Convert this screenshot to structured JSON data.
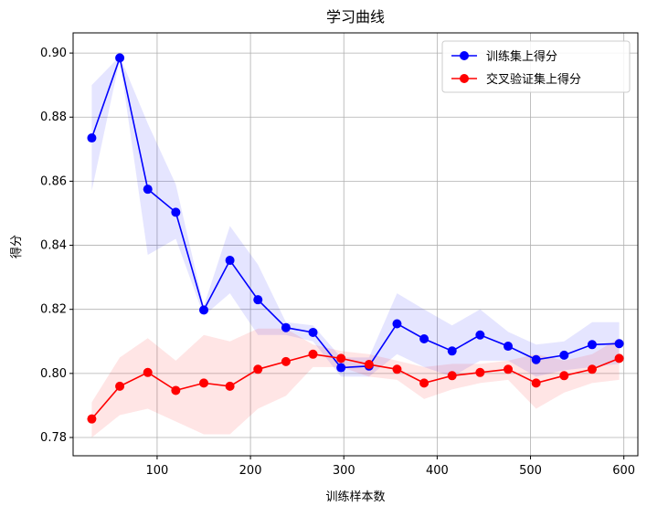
{
  "chart_data": {
    "type": "line",
    "title": "学习曲线",
    "xlabel": "训练样本数",
    "ylabel": "得分",
    "xlim": [
      10,
      615
    ],
    "ylim": [
      0.7743,
      0.9063
    ],
    "xticks": [
      100,
      200,
      300,
      400,
      500,
      600
    ],
    "yticks": [
      0.78,
      0.8,
      0.82,
      0.84,
      0.86,
      0.88,
      0.9
    ],
    "grid": true,
    "legend_position": "top-right",
    "x": [
      30,
      60,
      90,
      120,
      150,
      178,
      208,
      238,
      267,
      297,
      327,
      357,
      386,
      416,
      446,
      476,
      506,
      536,
      566,
      595
    ],
    "series": [
      {
        "name": "训练集上得分",
        "color": "#0000ff",
        "band_color": "#0000ff",
        "values": [
          0.8735,
          0.8985,
          0.8575,
          0.8503,
          0.8198,
          0.8353,
          0.823,
          0.8143,
          0.8128,
          0.8018,
          0.8023,
          0.8155,
          0.8108,
          0.807,
          0.812,
          0.8085,
          0.8043,
          0.8057,
          0.809,
          0.8093
        ],
        "upper": [
          0.89,
          0.899,
          0.878,
          0.859,
          0.821,
          0.846,
          0.834,
          0.816,
          0.815,
          0.805,
          0.805,
          0.825,
          0.82,
          0.815,
          0.82,
          0.813,
          0.809,
          0.81,
          0.816,
          0.816
        ],
        "lower": [
          0.857,
          0.898,
          0.837,
          0.842,
          0.818,
          0.825,
          0.812,
          0.812,
          0.81,
          0.799,
          0.799,
          0.806,
          0.802,
          0.799,
          0.804,
          0.804,
          0.799,
          0.801,
          0.802,
          0.803
        ]
      },
      {
        "name": "交叉验证集上得分",
        "color": "#ff0000",
        "band_color": "#ff0000",
        "values": [
          0.7858,
          0.796,
          0.8003,
          0.7947,
          0.797,
          0.796,
          0.8013,
          0.8037,
          0.806,
          0.8047,
          0.8028,
          0.8013,
          0.797,
          0.7993,
          0.8003,
          0.8013,
          0.797,
          0.7993,
          0.8013,
          0.8047
        ],
        "upper": [
          0.791,
          0.805,
          0.811,
          0.804,
          0.812,
          0.81,
          0.814,
          0.814,
          0.809,
          0.807,
          0.806,
          0.804,
          0.802,
          0.803,
          0.803,
          0.804,
          0.806,
          0.804,
          0.806,
          0.811
        ],
        "lower": [
          0.78,
          0.787,
          0.789,
          0.785,
          0.781,
          0.781,
          0.789,
          0.793,
          0.802,
          0.802,
          0.799,
          0.798,
          0.792,
          0.795,
          0.797,
          0.798,
          0.789,
          0.794,
          0.797,
          0.798
        ]
      }
    ]
  }
}
